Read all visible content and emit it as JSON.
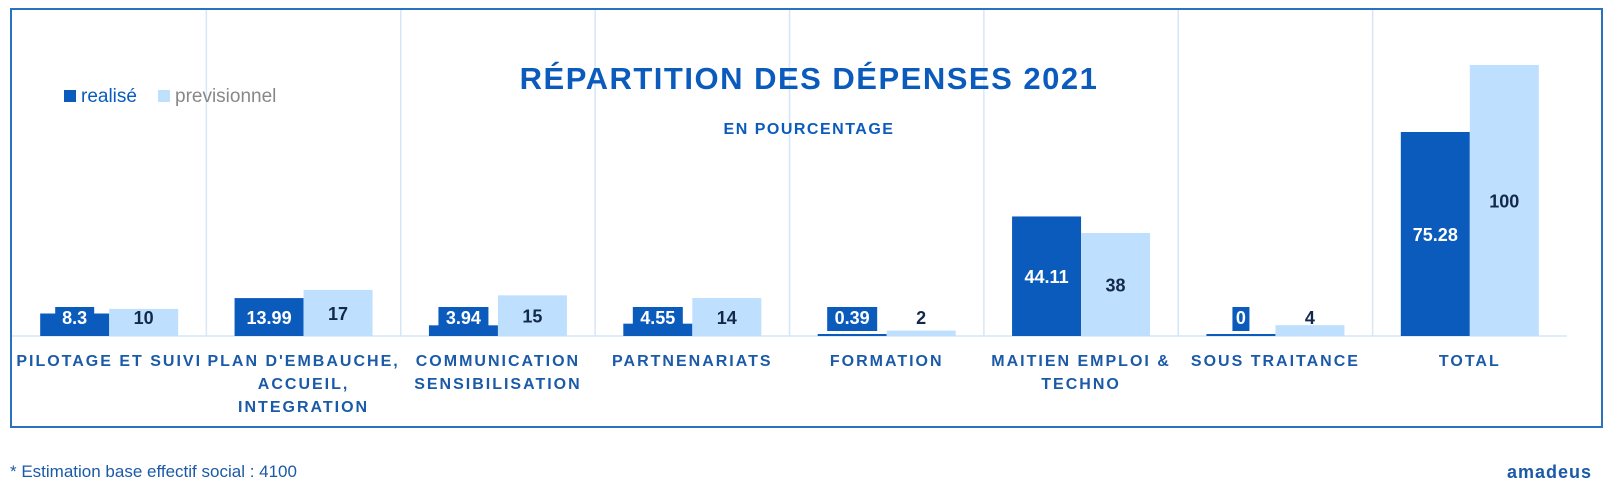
{
  "chart_data": {
    "type": "bar",
    "title": "RÉPARTITION DES DÉPENSES 2021",
    "subtitle": "EN POURCENTAGE",
    "categories": [
      [
        "PILOTAGE ET SUIVI"
      ],
      [
        "PLAN D'EMBAUCHE,",
        "ACCUEIL,",
        "INTEGRATION"
      ],
      [
        "COMMUNICATION",
        "SENSIBILISATION"
      ],
      [
        "PARTNENARIATS"
      ],
      [
        "FORMATION"
      ],
      [
        "MAITIEN EMPLOI &",
        "TECHNO"
      ],
      [
        "SOUS TRAITANCE"
      ],
      [
        "TOTAL"
      ]
    ],
    "series": [
      {
        "name": "realisé",
        "color": "#0b5bbd",
        "label_color": "#ffffff",
        "values": [
          8.3,
          13.99,
          3.94,
          4.55,
          0.39,
          44.11,
          0,
          75.28
        ]
      },
      {
        "name": "previsionnel",
        "color": "#bfdfff",
        "label_color": "#13294b",
        "values": [
          10,
          17,
          15,
          14,
          2,
          38,
          4,
          100
        ]
      }
    ],
    "ylim": [
      0,
      100
    ],
    "legend_position": "top-left",
    "grid": false
  },
  "footer": {
    "note": "* Estimation base effectif social : 4100",
    "brand": "amadeus"
  }
}
